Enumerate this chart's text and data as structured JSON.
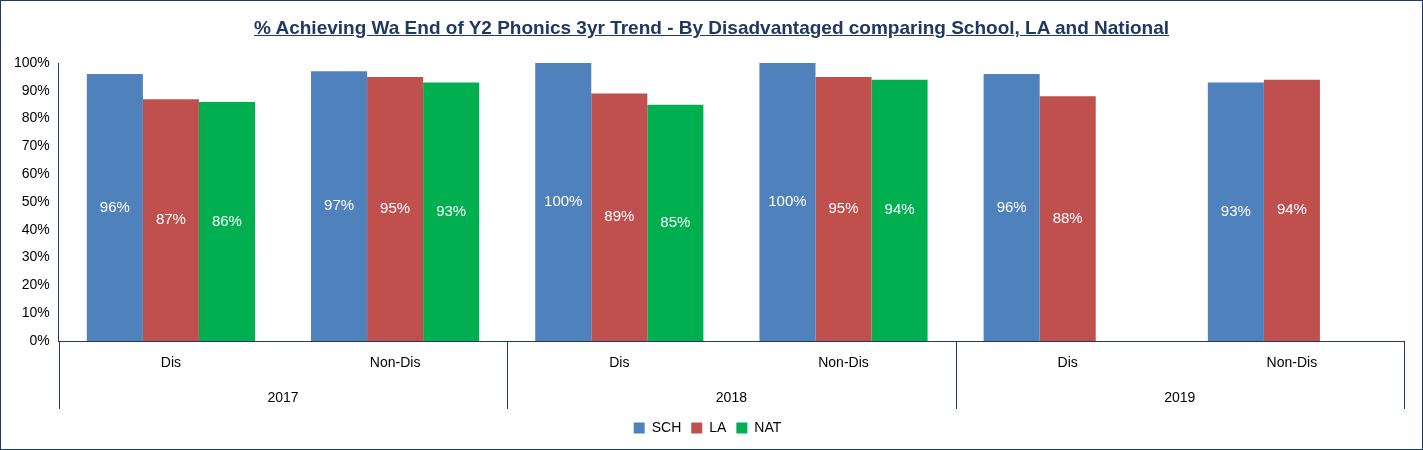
{
  "chart_data": {
    "type": "bar",
    "title": "% Achieving Wa End of Y2 Phonics 3yr Trend - By Disadvantaged comparing School, LA and National",
    "categories": [
      "Dis",
      "Non-Dis",
      "Dis",
      "Non-Dis",
      "Dis",
      "Non-Dis"
    ],
    "annotations": [
      "2017",
      "2018",
      "2019"
    ],
    "series": [
      {
        "name": "SCH",
        "color": "#4f81bd",
        "values": [
          96,
          97,
          100,
          100,
          96,
          93
        ],
        "value_labels": [
          "96%",
          "97%",
          "100%",
          "100%",
          "96%",
          "93%"
        ]
      },
      {
        "name": "LA",
        "color": "#c0504d",
        "values": [
          87,
          95,
          89,
          95,
          88,
          94
        ],
        "value_labels": [
          "87%",
          "95%",
          "89%",
          "95%",
          "88%",
          "94%"
        ]
      },
      {
        "name": "NAT",
        "color": "#00b050",
        "values": [
          86,
          93,
          85,
          94,
          null,
          null
        ],
        "value_labels": [
          "86%",
          "93%",
          "85%",
          "94%",
          null,
          null
        ]
      }
    ],
    "ylim": [
      0,
      100
    ],
    "yticks": [
      {
        "value": 0,
        "label": "0%"
      },
      {
        "value": 10,
        "label": "10%"
      },
      {
        "value": 20,
        "label": "20%"
      },
      {
        "value": 30,
        "label": "30%"
      },
      {
        "value": 40,
        "label": "40%"
      },
      {
        "value": 50,
        "label": "50%"
      },
      {
        "value": 60,
        "label": "60%"
      },
      {
        "value": 70,
        "label": "70%"
      },
      {
        "value": 80,
        "label": "80%"
      },
      {
        "value": 90,
        "label": "90%"
      },
      {
        "value": 100,
        "label": "100%"
      }
    ],
    "grid": false,
    "legend": "bottom"
  }
}
